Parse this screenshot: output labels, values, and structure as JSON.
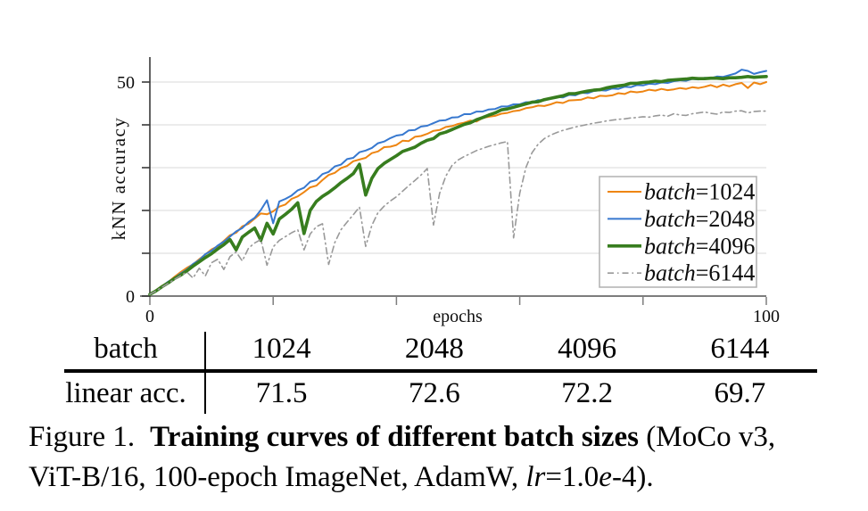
{
  "chart_data": {
    "type": "line",
    "title": "",
    "xlabel": "epochs",
    "ylabel": "kNN accuracy",
    "xlim": [
      0,
      100
    ],
    "ylim": [
      0,
      55
    ],
    "grid": "horizontal",
    "legend_position": "lower right",
    "x_ticks": [
      0,
      20,
      40,
      60,
      80,
      100
    ],
    "x_tick_labels": [
      "0",
      "",
      "",
      "",
      "",
      "100"
    ],
    "y_ticks": [
      0,
      10,
      20,
      30,
      40,
      50
    ],
    "y_tick_labels": [
      "0",
      "",
      "",
      "",
      "",
      "50"
    ],
    "colors": {
      "grid": "#d9d9d9",
      "axis_x": "#7d7d7d",
      "axis_y": "#3a3a3a",
      "legend_border": "#b0b0b0"
    },
    "x": [
      0,
      1,
      2,
      3,
      4,
      5,
      6,
      7,
      8,
      9,
      10,
      11,
      12,
      13,
      14,
      15,
      16,
      17,
      18,
      19,
      20,
      21,
      22,
      23,
      24,
      25,
      26,
      27,
      28,
      29,
      30,
      31,
      32,
      33,
      34,
      35,
      36,
      37,
      38,
      39,
      40,
      41,
      42,
      43,
      44,
      45,
      46,
      47,
      48,
      49,
      50,
      51,
      52,
      53,
      54,
      55,
      56,
      57,
      58,
      59,
      60,
      61,
      62,
      63,
      64,
      65,
      66,
      67,
      68,
      69,
      70,
      71,
      72,
      73,
      74,
      75,
      76,
      77,
      78,
      79,
      80,
      81,
      82,
      83,
      84,
      85,
      86,
      87,
      88,
      89,
      90,
      91,
      92,
      93,
      94,
      95,
      96,
      97,
      98,
      99,
      100
    ],
    "series": [
      {
        "name": "batch=1024",
        "color": "#ee8512",
        "width": 2,
        "style": "solid",
        "values": [
          0.5,
          1.4,
          2.4,
          3.3,
          4.5,
          5.6,
          6.6,
          7.4,
          8.6,
          9.7,
          10.9,
          11.6,
          12.9,
          14.2,
          14.8,
          16.3,
          16.9,
          18.1,
          19.3,
          19.1,
          19.8,
          20.9,
          21.4,
          22.7,
          23.3,
          24.3,
          25.4,
          25.8,
          27.1,
          28.3,
          28.8,
          29.9,
          30.4,
          31.5,
          31.9,
          32.3,
          33.4,
          33.8,
          34.8,
          34.9,
          35.3,
          36.3,
          36.2,
          37.2,
          37.4,
          37.9,
          38.6,
          38.8,
          39.5,
          39.7,
          40.2,
          40.5,
          41.0,
          40.8,
          41.6,
          41.9,
          42.1,
          42.6,
          42.8,
          43.2,
          43.4,
          43.9,
          44.1,
          44.5,
          44.4,
          44.8,
          45.3,
          45.1,
          45.7,
          45.8,
          45.9,
          46.4,
          46.2,
          46.8,
          46.7,
          46.9,
          47.4,
          47.2,
          47.8,
          47.6,
          47.8,
          48.2,
          48.0,
          48.4,
          48.1,
          48.3,
          48.6,
          48.4,
          48.8,
          48.6,
          48.9,
          49.3,
          48.8,
          49.4,
          49.0,
          49.5,
          49.8,
          48.6,
          49.9,
          49.5,
          50.0
        ]
      },
      {
        "name": "batch=2048",
        "color": "#3778cf",
        "width": 2,
        "style": "solid",
        "values": [
          0.4,
          1.3,
          2.3,
          3.4,
          4.2,
          5.3,
          6.2,
          7.5,
          8.4,
          9.8,
          10.6,
          11.8,
          12.7,
          13.9,
          15.1,
          15.9,
          17.3,
          18.3,
          20.1,
          22.4,
          17.0,
          22.1,
          22.7,
          23.5,
          24.7,
          25.3,
          26.7,
          27.1,
          28.5,
          29.0,
          30.3,
          30.7,
          32.0,
          32.3,
          33.6,
          34.0,
          34.6,
          35.7,
          36.1,
          36.9,
          37.5,
          37.7,
          38.7,
          38.8,
          39.6,
          39.8,
          40.4,
          41.0,
          41.1,
          41.7,
          41.8,
          42.5,
          42.5,
          43.1,
          43.1,
          43.6,
          43.7,
          44.3,
          44.3,
          44.8,
          44.8,
          45.3,
          45.3,
          45.8,
          45.7,
          46.2,
          46.5,
          46.4,
          47.0,
          46.9,
          47.5,
          47.4,
          47.9,
          48.1,
          48.0,
          48.5,
          48.4,
          48.9,
          48.8,
          49.3,
          49.2,
          49.6,
          49.5,
          49.9,
          49.8,
          50.2,
          50.4,
          50.3,
          50.7,
          50.6,
          51.0,
          50.9,
          51.3,
          51.2,
          51.6,
          52.0,
          52.9,
          52.6,
          51.9,
          52.3,
          52.6
        ]
      },
      {
        "name": "batch=4096",
        "color": "#377d1e",
        "width": 3.6,
        "style": "solid",
        "values": [
          0.4,
          1.2,
          2.2,
          3.1,
          4.1,
          4.9,
          5.9,
          7.0,
          8.0,
          9.0,
          9.9,
          11.0,
          12.0,
          13.2,
          10.8,
          13.8,
          14.9,
          15.9,
          13.0,
          17.0,
          14.5,
          18.0,
          19.1,
          20.3,
          21.8,
          14.6,
          20.0,
          22.1,
          23.3,
          24.2,
          25.3,
          26.5,
          27.5,
          28.6,
          30.8,
          23.6,
          27.5,
          29.8,
          31.0,
          31.9,
          32.8,
          33.8,
          34.3,
          34.8,
          35.7,
          36.4,
          36.8,
          37.9,
          38.3,
          38.9,
          39.5,
          40.1,
          40.5,
          41.2,
          41.7,
          42.3,
          42.8,
          43.5,
          43.7,
          44.1,
          44.5,
          44.9,
          45.3,
          45.4,
          45.9,
          46.2,
          46.5,
          46.8,
          47.3,
          47.3,
          47.6,
          47.9,
          48.1,
          48.2,
          48.6,
          48.9,
          49.1,
          49.3,
          49.7,
          49.7,
          49.9,
          50.0,
          50.2,
          50.1,
          50.4,
          50.5,
          50.6,
          50.7,
          50.9,
          50.8,
          50.8,
          50.9,
          50.9,
          50.8,
          51.0,
          51.0,
          51.1,
          51.3,
          51.1,
          51.2,
          51.3
        ]
      },
      {
        "name": "batch=6144",
        "color": "#999999",
        "width": 1.6,
        "style": "dashdot",
        "values": [
          0.4,
          1.2,
          2.1,
          3.0,
          3.9,
          4.8,
          5.6,
          4.2,
          6.5,
          4.7,
          7.8,
          8.6,
          6.2,
          9.2,
          10.3,
          8.2,
          11.2,
          12.4,
          13.2,
          7.2,
          11.5,
          13.0,
          13.9,
          14.8,
          15.5,
          10.8,
          14.5,
          16.2,
          16.9,
          7.4,
          12.5,
          15.5,
          17.3,
          19.0,
          20.8,
          11.6,
          16.5,
          19.5,
          21.0,
          22.2,
          23.2,
          24.5,
          25.8,
          27.0,
          28.3,
          29.8,
          16.6,
          24.0,
          28.0,
          30.5,
          31.8,
          32.6,
          33.3,
          34.0,
          34.5,
          35.0,
          35.4,
          35.8,
          36.1,
          13.6,
          24.0,
          30.0,
          33.5,
          35.5,
          36.8,
          37.6,
          38.2,
          38.7,
          39.1,
          39.5,
          39.8,
          40.1,
          40.4,
          40.6,
          40.9,
          41.1,
          41.3,
          41.4,
          41.6,
          41.7,
          41.9,
          41.8,
          42.1,
          42.3,
          42.0,
          42.6,
          42.3,
          42.2,
          42.6,
          42.8,
          43.0,
          42.7,
          42.5,
          43.0,
          42.9,
          43.2,
          43.3,
          42.8,
          43.1,
          43.2,
          43.2
        ]
      }
    ]
  },
  "table": {
    "header_label": "batch",
    "row_label": "linear acc.",
    "batches": [
      "1024",
      "2048",
      "4096",
      "6144"
    ],
    "values": [
      "71.5",
      "72.6",
      "72.2",
      "69.7"
    ]
  },
  "caption": {
    "figure_label": "Figure 1.",
    "bold_title": "Training curves of different batch sizes",
    "line1_rest": " (MoCo v3,",
    "line2_a": "ViT-B/16, 100-epoch ImageNet, AdamW, ",
    "lr_var": "lr",
    "line2_b": "=1.0",
    "e_var": "e",
    "line2_c": "-4)."
  }
}
